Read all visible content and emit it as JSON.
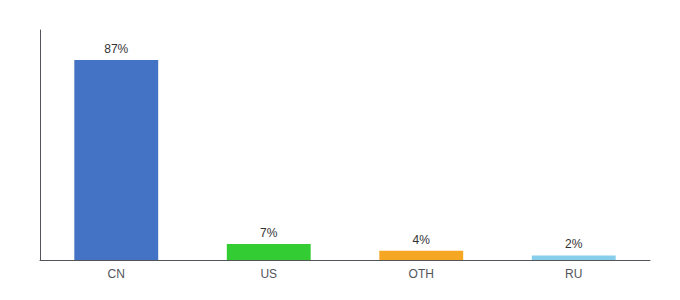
{
  "chart_data": {
    "type": "bar",
    "categories": [
      "CN",
      "US",
      "OTH",
      "RU"
    ],
    "values": [
      87,
      7,
      4,
      2
    ],
    "value_labels": [
      "87%",
      "7%",
      "4%",
      "2%"
    ],
    "data_labels": true,
    "colors": [
      "#4472c4",
      "#33cc33",
      "#f5a623",
      "#87ceeb"
    ],
    "ylim": [
      0,
      100
    ],
    "tick_labels": "x",
    "grid": false
  }
}
